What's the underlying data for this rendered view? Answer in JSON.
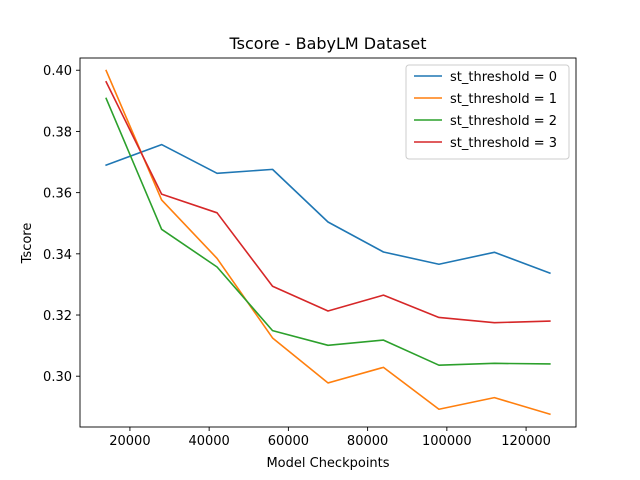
{
  "chart_data": {
    "type": "line",
    "title": "Tscore - BabyLM Dataset",
    "xlabel": "Model Checkpoints",
    "ylabel": "Tscore",
    "x": [
      14000,
      28000,
      42000,
      56000,
      70000,
      84000,
      98000,
      112000,
      126000
    ],
    "xlim": [
      7400,
      132600
    ],
    "ylim": [
      0.2834,
      0.404
    ],
    "xticks": [
      20000,
      40000,
      60000,
      80000,
      100000,
      120000
    ],
    "xtick_labels": [
      "20000",
      "40000",
      "60000",
      "80000",
      "100000",
      "120000"
    ],
    "yticks": [
      0.3,
      0.32,
      0.34,
      0.36,
      0.38,
      0.4
    ],
    "ytick_labels": [
      "0.30",
      "0.32",
      "0.34",
      "0.36",
      "0.38",
      "0.40"
    ],
    "grid": false,
    "legend_position": "top-right",
    "series": [
      {
        "name": "st_threshold = 0",
        "color": "#1f77b4",
        "values": [
          0.369,
          0.3757,
          0.3663,
          0.3676,
          0.3504,
          0.3406,
          0.3366,
          0.3405,
          0.3337
        ]
      },
      {
        "name": "st_threshold = 1",
        "color": "#ff7f0e",
        "values": [
          0.3999,
          0.3576,
          0.3385,
          0.3125,
          0.2978,
          0.3029,
          0.2892,
          0.293,
          0.2876
        ]
      },
      {
        "name": "st_threshold = 2",
        "color": "#2ca02c",
        "values": [
          0.3908,
          0.348,
          0.3357,
          0.3149,
          0.3101,
          0.3118,
          0.3036,
          0.3042,
          0.304
        ]
      },
      {
        "name": "st_threshold = 3",
        "color": "#d62728",
        "values": [
          0.3962,
          0.3595,
          0.3534,
          0.3294,
          0.3213,
          0.3265,
          0.3192,
          0.3175,
          0.318
        ]
      }
    ]
  }
}
